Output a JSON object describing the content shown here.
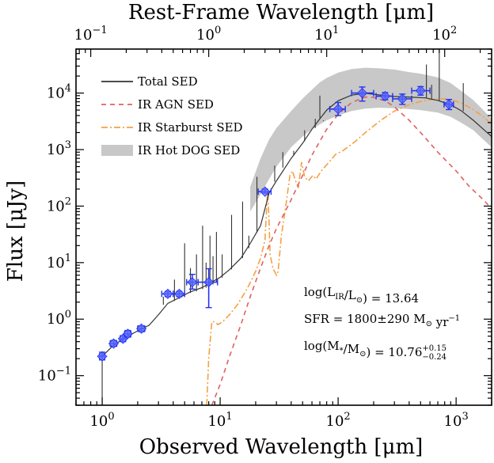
{
  "chart_data": {
    "type": "line",
    "xlabel": "Observed Wavelength [μm]",
    "ylabel": "Flux [μJy]",
    "x2label": "Rest-Frame Wavelength [μm]",
    "xscale": "log",
    "yscale": "log",
    "xlim": [
      0.6,
      2000
    ],
    "ylim": [
      0.03,
      60000
    ],
    "x2lim": [
      0.075,
      250
    ],
    "restframe_factor": 8.0,
    "x_ticks": [
      {
        "value": 1,
        "label": "10^0"
      },
      {
        "value": 10,
        "label": "10^1"
      },
      {
        "value": 100,
        "label": "10^2"
      },
      {
        "value": 1000,
        "label": "10^3"
      }
    ],
    "x2_ticks": [
      {
        "value": 0.1,
        "label": "10^-1"
      },
      {
        "value": 1,
        "label": "10^0"
      },
      {
        "value": 10,
        "label": "10^1"
      },
      {
        "value": 100,
        "label": "10^2"
      }
    ],
    "y_ticks": [
      {
        "value": 0.1,
        "label": "10^-1"
      },
      {
        "value": 1,
        "label": "10^0"
      },
      {
        "value": 10,
        "label": "10^1"
      },
      {
        "value": 100,
        "label": "10^2"
      },
      {
        "value": 1000,
        "label": "10^3"
      },
      {
        "value": 10000,
        "label": "10^4"
      }
    ],
    "legend": {
      "placement": "top-left"
    },
    "series": [
      {
        "name": "Total SED",
        "kind": "line",
        "color": "#333333",
        "points": [
          [
            1.0,
            0.22
          ],
          [
            1.2,
            0.32
          ],
          [
            1.5,
            0.45
          ],
          [
            2.0,
            0.62
          ],
          [
            2.5,
            0.78
          ],
          [
            3.0,
            1.2
          ],
          [
            3.6,
            1.9
          ],
          [
            4.5,
            2.4
          ],
          [
            5.5,
            3.0
          ],
          [
            7.0,
            3.6
          ],
          [
            8.0,
            4.2
          ],
          [
            10,
            5.5
          ],
          [
            12,
            7.5
          ],
          [
            15,
            12
          ],
          [
            18,
            22
          ],
          [
            22,
            45
          ],
          [
            26,
            170
          ],
          [
            30,
            280
          ],
          [
            40,
            700
          ],
          [
            50,
            1300
          ],
          [
            60,
            2300
          ],
          [
            70,
            3500
          ],
          [
            80,
            5000
          ],
          [
            100,
            7300
          ],
          [
            130,
            9200
          ],
          [
            170,
            9900
          ],
          [
            220,
            9300
          ],
          [
            300,
            8700
          ],
          [
            400,
            8500
          ],
          [
            550,
            8200
          ],
          [
            700,
            7400
          ],
          [
            900,
            6200
          ],
          [
            1100,
            4900
          ],
          [
            1400,
            3300
          ],
          [
            1700,
            2300
          ],
          [
            2000,
            1700
          ]
        ],
        "lines": [
          {
            "x": 1.0,
            "top": 0.22,
            "bottom": 0.03
          },
          {
            "x": 3.3,
            "top": 2.5,
            "bottom": 1.8
          },
          {
            "x": 4.1,
            "top": 5.0,
            "bottom": 2.1
          },
          {
            "x": 5.0,
            "top": 22,
            "bottom": 2.6
          },
          {
            "x": 5.6,
            "top": 8,
            "bottom": 2.9
          },
          {
            "x": 6.3,
            "top": 14,
            "bottom": 3.1
          },
          {
            "x": 7.1,
            "top": 45,
            "bottom": 3.4
          },
          {
            "x": 7.6,
            "top": 10,
            "bottom": 3.6
          },
          {
            "x": 8.2,
            "top": 30,
            "bottom": 3.9
          },
          {
            "x": 8.7,
            "top": 13,
            "bottom": 4.1
          },
          {
            "x": 9.3,
            "top": 35,
            "bottom": 4.6
          },
          {
            "x": 10.4,
            "top": 14,
            "bottom": 5.4
          },
          {
            "x": 12.5,
            "top": 70,
            "bottom": 7.6
          },
          {
            "x": 15.5,
            "top": 120,
            "bottom": 12
          },
          {
            "x": 17.5,
            "top": 30,
            "bottom": 18
          },
          {
            "x": 20.5,
            "top": 330,
            "bottom": 34
          },
          {
            "x": 25.5,
            "top": 170,
            "bottom": 155
          },
          {
            "x": 29,
            "top": 520,
            "bottom": 270
          },
          {
            "x": 34,
            "top": 900,
            "bottom": 480
          },
          {
            "x": 42,
            "top": 950,
            "bottom": 780
          },
          {
            "x": 52,
            "top": 2200,
            "bottom": 1400
          },
          {
            "x": 64,
            "top": 3500,
            "bottom": 2400
          },
          {
            "x": 70,
            "top": 9000,
            "bottom": 3600
          },
          {
            "x": 75,
            "top": 3300,
            "bottom": 3200
          },
          {
            "x": 560,
            "top": 32000,
            "bottom": 8200
          },
          {
            "x": 620,
            "top": 14000,
            "bottom": 7900
          },
          {
            "x": 720,
            "top": 65000,
            "bottom": 7300
          },
          {
            "x": 1150,
            "top": 15000,
            "bottom": 4800
          }
        ]
      },
      {
        "name": "IR AGN SED",
        "kind": "line",
        "color": "#e06060",
        "dash": "6,5",
        "points": [
          [
            8.5,
            0.03
          ],
          [
            10,
            0.07
          ],
          [
            12,
            0.22
          ],
          [
            15,
            0.8
          ],
          [
            18,
            2.5
          ],
          [
            22,
            8
          ],
          [
            26,
            20
          ],
          [
            30,
            40
          ],
          [
            40,
            130
          ],
          [
            50,
            350
          ],
          [
            60,
            800
          ],
          [
            70,
            1400
          ],
          [
            80,
            2300
          ],
          [
            100,
            4200
          ],
          [
            130,
            6800
          ],
          [
            170,
            8500
          ],
          [
            200,
            8400
          ],
          [
            250,
            7300
          ],
          [
            300,
            5700
          ],
          [
            400,
            3300
          ],
          [
            500,
            2000
          ],
          [
            700,
            900
          ],
          [
            1000,
            420
          ],
          [
            1300,
            220
          ],
          [
            1700,
            130
          ],
          [
            2000,
            90
          ]
        ]
      },
      {
        "name": "IR Starburst SED",
        "kind": "line",
        "color": "#f5a045",
        "dash": "8,3,2,3",
        "points": [
          [
            7.7,
            0.03
          ],
          [
            8.0,
            0.2
          ],
          [
            8.5,
            0.9
          ],
          [
            9.0,
            0.9
          ],
          [
            9.6,
            0.8
          ],
          [
            10.5,
            0.9
          ],
          [
            12,
            1.2
          ],
          [
            14,
            1.8
          ],
          [
            17,
            3.5
          ],
          [
            20,
            7
          ],
          [
            22,
            12
          ],
          [
            24,
            25
          ],
          [
            24.7,
            80
          ],
          [
            25.2,
            180
          ],
          [
            25.8,
            80
          ],
          [
            26.5,
            14
          ],
          [
            28,
            8
          ],
          [
            30,
            6
          ],
          [
            31,
            7
          ],
          [
            33,
            30
          ],
          [
            36,
            100
          ],
          [
            39,
            350
          ],
          [
            41,
            420
          ],
          [
            43,
            300
          ],
          [
            46,
            210
          ],
          [
            49,
            600
          ],
          [
            52,
            330
          ],
          [
            56,
            280
          ],
          [
            61,
            350
          ],
          [
            65,
            300
          ],
          [
            72,
            420
          ],
          [
            85,
            620
          ],
          [
            95,
            820
          ],
          [
            110,
            960
          ],
          [
            140,
            1400
          ],
          [
            170,
            2000
          ],
          [
            230,
            3300
          ],
          [
            300,
            4800
          ],
          [
            400,
            6200
          ],
          [
            500,
            7100
          ],
          [
            700,
            8000
          ],
          [
            900,
            7700
          ],
          [
            1100,
            6700
          ],
          [
            1400,
            5100
          ],
          [
            1700,
            3800
          ],
          [
            2000,
            2800
          ]
        ]
      },
      {
        "name": "IR Hot DOG SED",
        "kind": "band",
        "color": "#c8c8c8",
        "upper": [
          [
            18,
            220
          ],
          [
            22,
            700
          ],
          [
            26,
            1500
          ],
          [
            30,
            2400
          ],
          [
            40,
            4800
          ],
          [
            50,
            8000
          ],
          [
            60,
            11500
          ],
          [
            70,
            15500
          ],
          [
            80,
            18500
          ],
          [
            100,
            23000
          ],
          [
            130,
            26500
          ],
          [
            170,
            28000
          ],
          [
            220,
            27500
          ],
          [
            300,
            26000
          ],
          [
            400,
            23500
          ],
          [
            500,
            22000
          ],
          [
            700,
            19000
          ],
          [
            900,
            15000
          ],
          [
            1100,
            11000
          ],
          [
            1400,
            7500
          ],
          [
            1700,
            5000
          ],
          [
            2000,
            3500
          ]
        ],
        "lower": [
          [
            2000,
            1100
          ],
          [
            1700,
            1500
          ],
          [
            1400,
            2200
          ],
          [
            1100,
            3000
          ],
          [
            900,
            3800
          ],
          [
            700,
            4500
          ],
          [
            500,
            5000
          ],
          [
            400,
            5200
          ],
          [
            300,
            5400
          ],
          [
            220,
            5500
          ],
          [
            170,
            5300
          ],
          [
            130,
            4800
          ],
          [
            100,
            4000
          ],
          [
            80,
            3300
          ],
          [
            70,
            2800
          ],
          [
            60,
            2300
          ],
          [
            50,
            1700
          ],
          [
            40,
            1100
          ],
          [
            30,
            500
          ],
          [
            26,
            300
          ],
          [
            22,
            160
          ],
          [
            18,
            80
          ]
        ]
      },
      {
        "name": "",
        "kind": "errorbar",
        "color": "#2233ee",
        "marker_color": "#5a66ff",
        "points": [
          {
            "x": 1.0,
            "y": 0.22,
            "xerr": [
              0.95,
              1.05
            ],
            "yerr": [
              0.19,
              0.26
            ]
          },
          {
            "x": 1.25,
            "y": 0.37,
            "xerr": [
              1.17,
              1.33
            ],
            "yerr": [
              0.33,
              0.42
            ]
          },
          {
            "x": 1.5,
            "y": 0.45,
            "xerr": [
              1.42,
              1.58
            ],
            "yerr": [
              0.4,
              0.51
            ]
          },
          {
            "x": 1.65,
            "y": 0.55,
            "xerr": [
              1.55,
              1.75
            ],
            "yerr": [
              0.48,
              0.63
            ]
          },
          {
            "x": 2.15,
            "y": 0.68,
            "xerr": [
              2.0,
              2.3
            ],
            "yerr": [
              0.6,
              0.76
            ]
          },
          {
            "x": 3.6,
            "y": 2.8,
            "xerr": [
              3.2,
              4.0
            ],
            "yerr": [
              2.5,
              3.1
            ]
          },
          {
            "x": 4.5,
            "y": 2.8,
            "xerr": [
              4.0,
              5.0
            ],
            "yerr": [
              2.5,
              3.1
            ]
          },
          {
            "x": 5.8,
            "y": 4.5,
            "xerr": [
              5.2,
              6.5
            ],
            "yerr": [
              3.4,
              6.2
            ]
          },
          {
            "x": 8.0,
            "y": 4.5,
            "xerr": [
              6.5,
              9.5
            ],
            "yerr": [
              1.6,
              7.8
            ]
          },
          {
            "x": 24,
            "y": 180,
            "xerr": [
              21,
              27
            ],
            "yerr": [
              170,
              200
            ]
          },
          {
            "x": 100,
            "y": 5200,
            "xerr": [
              85,
              115
            ],
            "yerr": [
              4000,
              6800
            ]
          },
          {
            "x": 160,
            "y": 10000,
            "xerr": [
              130,
              200
            ],
            "yerr": [
              7200,
              12800
            ]
          },
          {
            "x": 250,
            "y": 8800,
            "xerr": [
              210,
              290
            ],
            "yerr": [
              7600,
              10200
            ]
          },
          {
            "x": 350,
            "y": 7900,
            "xerr": [
              290,
              420
            ],
            "yerr": [
              6300,
              9600
            ]
          },
          {
            "x": 500,
            "y": 11000,
            "xerr": [
              420,
              600
            ],
            "yerr": [
              9200,
              13000
            ]
          },
          {
            "x": 870,
            "y": 6300,
            "xerr": [
              790,
              950
            ],
            "yerr": [
              5100,
              7700
            ]
          }
        ]
      }
    ],
    "annotations": [
      {
        "parts": [
          {
            "t": "log(L"
          },
          {
            "t": "IR",
            "sub": true
          },
          {
            "t": "/L"
          },
          {
            "t": "⊙",
            "sub": true
          },
          {
            "t": ") = 13.64"
          }
        ]
      },
      {
        "parts": [
          {
            "t": "SFR = 1800±290 M"
          },
          {
            "t": "⊙",
            "sub": true
          },
          {
            "t": " yr"
          },
          {
            "t": "−1",
            "sup": true
          }
        ]
      },
      {
        "parts": [
          {
            "t": "log(M"
          },
          {
            "t": "*",
            "sub": true
          },
          {
            "t": "/M"
          },
          {
            "t": "⊙",
            "sub": true
          },
          {
            "t": ") = 10.76"
          },
          {
            "t": "+0.15",
            "sup": true
          },
          {
            "t": "−0.24",
            "sub": true
          }
        ]
      }
    ]
  }
}
